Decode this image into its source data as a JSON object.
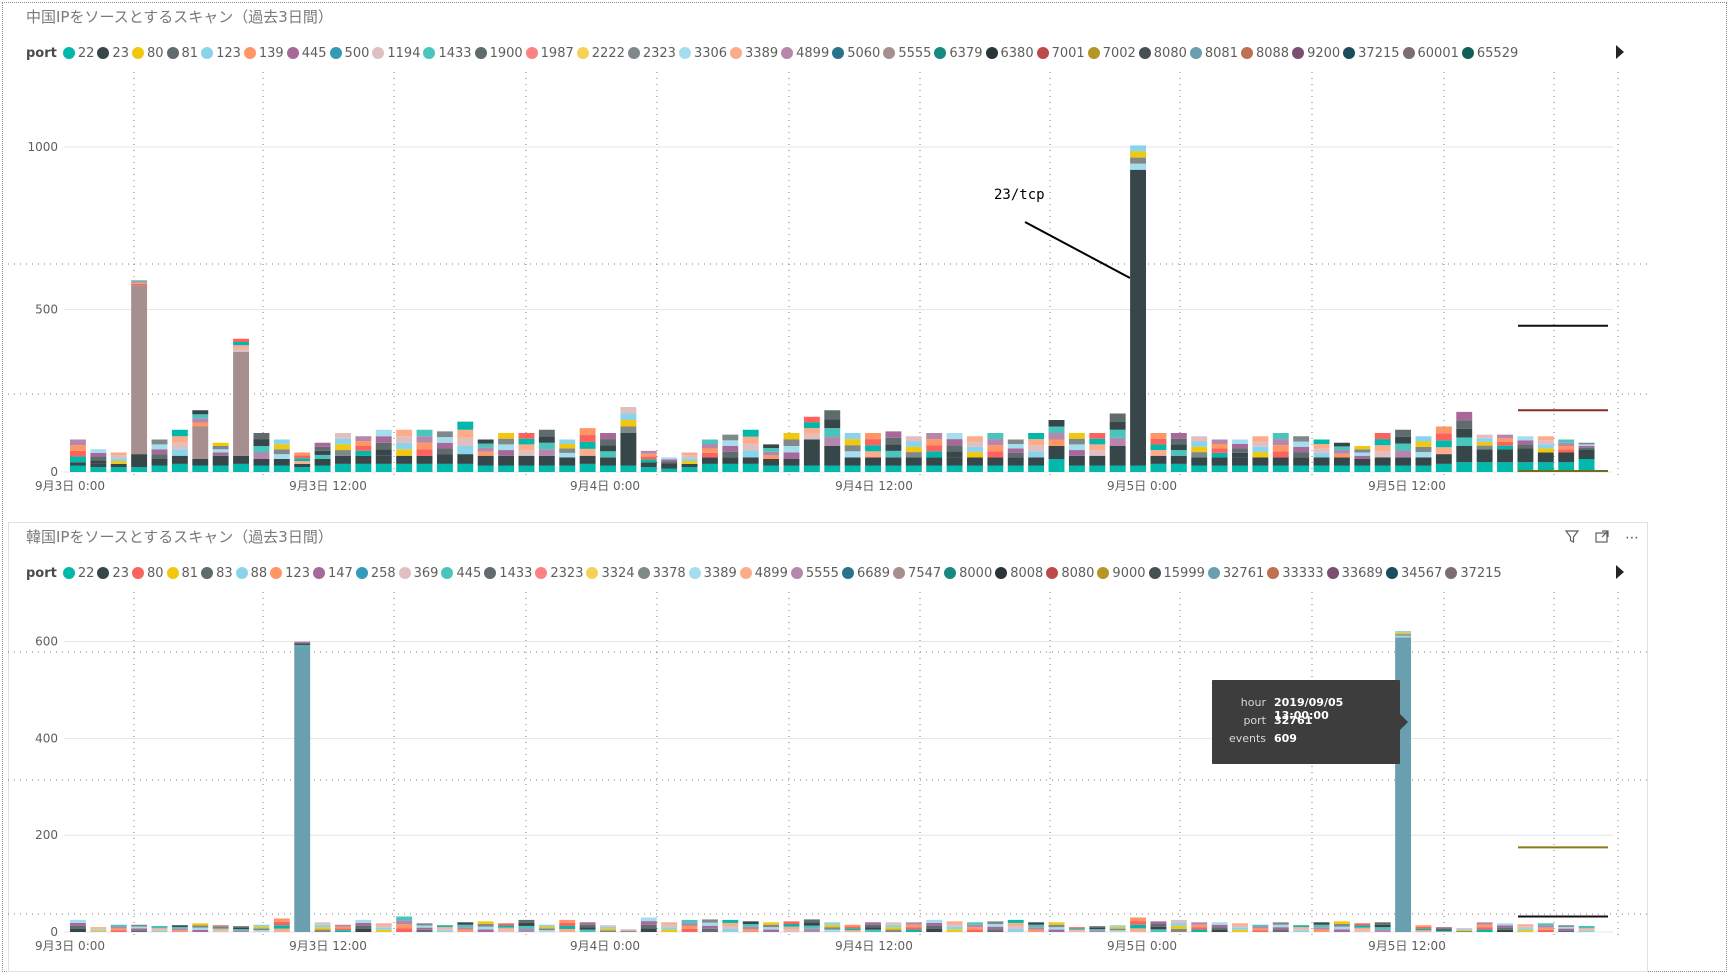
{
  "panels": [
    {
      "title": "中国IPをソースとするスキャン（過去3日間）",
      "legend_label": "port",
      "legend": [
        {
          "label": "22",
          "color": "#01B8AA"
        },
        {
          "label": "23",
          "color": "#374649"
        },
        {
          "label": "80",
          "color": "#F2C80F"
        },
        {
          "label": "81",
          "color": "#5F6B6D"
        },
        {
          "label": "123",
          "color": "#8AD4EB"
        },
        {
          "label": "139",
          "color": "#FE9666"
        },
        {
          "label": "445",
          "color": "#A66999"
        },
        {
          "label": "500",
          "color": "#3599B8"
        },
        {
          "label": "1194",
          "color": "#DFBFBF"
        },
        {
          "label": "1433",
          "color": "#4AC5BB"
        },
        {
          "label": "1900",
          "color": "#5F6B6D"
        },
        {
          "label": "1987",
          "color": "#FB8281"
        },
        {
          "label": "2222",
          "color": "#F4D25A"
        },
        {
          "label": "2323",
          "color": "#7F898A"
        },
        {
          "label": "3306",
          "color": "#A4DDEE"
        },
        {
          "label": "3389",
          "color": "#FDAB89"
        },
        {
          "label": "4899",
          "color": "#B687AC"
        },
        {
          "label": "5060",
          "color": "#28738A"
        },
        {
          "label": "5555",
          "color": "#A78F8F"
        },
        {
          "label": "6379",
          "color": "#168980"
        },
        {
          "label": "6380",
          "color": "#293537"
        },
        {
          "label": "7001",
          "color": "#BB4A4A"
        },
        {
          "label": "7002",
          "color": "#B59525"
        },
        {
          "label": "8080",
          "color": "#475052"
        },
        {
          "label": "8081",
          "color": "#6A9FB0"
        },
        {
          "label": "8088",
          "color": "#BD7150"
        },
        {
          "label": "9200",
          "color": "#7B4F71"
        },
        {
          "label": "37215",
          "color": "#1B4D5C"
        },
        {
          "label": "60001",
          "color": "#7C6E6E"
        },
        {
          "label": "65529",
          "color": "#115E58"
        }
      ],
      "annotation": "23/tcp"
    },
    {
      "title": "韓国IPをソースとするスキャン（過去3日間）",
      "legend_label": "port",
      "legend": [
        {
          "label": "22",
          "color": "#01B8AA"
        },
        {
          "label": "23",
          "color": "#374649"
        },
        {
          "label": "80",
          "color": "#FD625E"
        },
        {
          "label": "81",
          "color": "#F2C80F"
        },
        {
          "label": "83",
          "color": "#5F6B6D"
        },
        {
          "label": "88",
          "color": "#8AD4EB"
        },
        {
          "label": "123",
          "color": "#FE9666"
        },
        {
          "label": "147",
          "color": "#A66999"
        },
        {
          "label": "258",
          "color": "#3599B8"
        },
        {
          "label": "369",
          "color": "#DFBFBF"
        },
        {
          "label": "445",
          "color": "#4AC5BB"
        },
        {
          "label": "1433",
          "color": "#5F6B6D"
        },
        {
          "label": "2323",
          "color": "#FB8281"
        },
        {
          "label": "3324",
          "color": "#F4D25A"
        },
        {
          "label": "3378",
          "color": "#7F898A"
        },
        {
          "label": "3389",
          "color": "#A4DDEE"
        },
        {
          "label": "4899",
          "color": "#FDAB89"
        },
        {
          "label": "5555",
          "color": "#B687AC"
        },
        {
          "label": "6689",
          "color": "#28738A"
        },
        {
          "label": "7547",
          "color": "#A78F8F"
        },
        {
          "label": "8000",
          "color": "#168980"
        },
        {
          "label": "8008",
          "color": "#293537"
        },
        {
          "label": "8080",
          "color": "#BB4A4A"
        },
        {
          "label": "9000",
          "color": "#B59525"
        },
        {
          "label": "15999",
          "color": "#475052"
        },
        {
          "label": "32761",
          "color": "#6A9FB0"
        },
        {
          "label": "33333",
          "color": "#BD7150"
        },
        {
          "label": "33689",
          "color": "#7B4F71"
        },
        {
          "label": "34567",
          "color": "#1B4D5C"
        },
        {
          "label": "37215",
          "color": "#7C6E6E"
        }
      ],
      "tooltip": {
        "hour_label": "hour",
        "hour_value": "2019/09/05 13:00:00",
        "port_label": "port",
        "port_value": "32761",
        "events_label": "events",
        "events_value": "609"
      }
    }
  ],
  "chart_data": [
    {
      "type": "bar",
      "stacked": true,
      "title": "中国IPをソースとするスキャン（過去3日間）",
      "xlabel": "",
      "ylabel": "",
      "ylim": [
        0,
        1000
      ],
      "yticks": [
        0,
        500,
        1000
      ],
      "x_tick_labels": [
        "9月3日 0:00",
        "9月3日 12:00",
        "9月4日 0:00",
        "9月4日 12:00",
        "9月5日 0:00",
        "9月5日 12:00"
      ],
      "hours_per_bar": 1,
      "totals": [
        100,
        70,
        60,
        590,
        100,
        130,
        190,
        90,
        410,
        120,
        100,
        60,
        90,
        120,
        110,
        130,
        130,
        130,
        125,
        155,
        100,
        120,
        120,
        130,
        100,
        135,
        120,
        200,
        65,
        45,
        60,
        100,
        115,
        130,
        85,
        120,
        170,
        190,
        120,
        120,
        125,
        110,
        120,
        120,
        110,
        120,
        100,
        120,
        160,
        120,
        120,
        180,
        1005,
        120,
        120,
        110,
        100,
        100,
        110,
        120,
        110,
        100,
        90,
        80,
        120,
        130,
        110,
        140,
        185,
        115,
        115,
        110,
        110,
        100,
        90
      ],
      "breakdown_23": [
        10,
        10,
        10,
        40,
        20,
        25,
        20,
        30,
        25,
        20,
        20,
        10,
        20,
        25,
        25,
        25,
        25,
        25,
        30,
        30,
        30,
        30,
        30,
        30,
        25,
        25,
        25,
        100,
        15,
        10,
        10,
        20,
        20,
        20,
        20,
        20,
        80,
        60,
        25,
        25,
        25,
        25,
        25,
        25,
        25,
        25,
        25,
        25,
        40,
        30,
        30,
        60,
        910,
        25,
        25,
        25,
        25,
        25,
        25,
        25,
        25,
        25,
        25,
        20,
        25,
        25,
        25,
        30,
        50,
        40,
        40,
        30,
        30,
        30,
        30
      ],
      "breakdown_22": [
        20,
        15,
        15,
        15,
        20,
        25,
        20,
        20,
        25,
        20,
        20,
        15,
        20,
        25,
        25,
        25,
        25,
        25,
        25,
        25,
        20,
        20,
        20,
        20,
        20,
        25,
        20,
        20,
        15,
        10,
        15,
        25,
        25,
        25,
        20,
        20,
        20,
        20,
        20,
        20,
        20,
        20,
        20,
        20,
        20,
        20,
        20,
        20,
        40,
        20,
        20,
        20,
        20,
        25,
        25,
        20,
        20,
        20,
        20,
        20,
        20,
        20,
        20,
        20,
        20,
        20,
        20,
        25,
        30,
        30,
        30,
        30,
        30,
        30,
        40
      ],
      "breakdown_5555": [
        0,
        0,
        0,
        520,
        0,
        0,
        100,
        0,
        320,
        0,
        0,
        0,
        0,
        0,
        0,
        0,
        0,
        0,
        0,
        0,
        0,
        0,
        0,
        0,
        0,
        0,
        0,
        0,
        0,
        0,
        0,
        0,
        0,
        0,
        0,
        0,
        0,
        0,
        0,
        0,
        0,
        0,
        0,
        0,
        0,
        0,
        0,
        0,
        0,
        0,
        0,
        0,
        0,
        0,
        0,
        0,
        0,
        0,
        0,
        0,
        0,
        0,
        0,
        0,
        0,
        0,
        0,
        0,
        0,
        0,
        0,
        0,
        0,
        0,
        0
      ],
      "reference_lines": [
        {
          "value": 450,
          "color": "#111111"
        },
        {
          "value": 190,
          "color": "#8B2A24"
        },
        {
          "value": 3,
          "color": "#6E6E20"
        }
      ]
    },
    {
      "type": "bar",
      "stacked": true,
      "title": "韓国IPをソースとするスキャン（過去3日間）",
      "xlabel": "",
      "ylabel": "",
      "ylim": [
        0,
        620
      ],
      "yticks": [
        0,
        200,
        400,
        600
      ],
      "x_tick_labels": [
        "9月3日 0:00",
        "9月3日 12:00",
        "9月4日 0:00",
        "9月4日 12:00",
        "9月5日 0:00",
        "9月5日 12:00"
      ],
      "hours_per_bar": 1,
      "totals": [
        25,
        10,
        15,
        15,
        12,
        14,
        18,
        14,
        12,
        15,
        28,
        600,
        20,
        15,
        25,
        18,
        32,
        18,
        14,
        20,
        22,
        18,
        25,
        15,
        25,
        20,
        14,
        5,
        30,
        20,
        25,
        26,
        25,
        22,
        20,
        22,
        26,
        20,
        15,
        20,
        20,
        20,
        25,
        22,
        20,
        22,
        25,
        20,
        20,
        10,
        12,
        14,
        30,
        22,
        25,
        20,
        20,
        18,
        15,
        20,
        14,
        20,
        22,
        18,
        20,
        622,
        14,
        10,
        8,
        20,
        18,
        16,
        18,
        14,
        12
      ],
      "breakdown_32761": [
        0,
        0,
        0,
        0,
        0,
        0,
        0,
        0,
        0,
        0,
        0,
        590,
        0,
        0,
        0,
        0,
        0,
        0,
        0,
        0,
        0,
        0,
        0,
        0,
        0,
        0,
        0,
        0,
        0,
        0,
        0,
        0,
        0,
        0,
        0,
        0,
        0,
        0,
        0,
        0,
        0,
        0,
        0,
        0,
        0,
        0,
        0,
        0,
        0,
        0,
        0,
        0,
        0,
        0,
        0,
        0,
        0,
        0,
        0,
        0,
        0,
        0,
        0,
        0,
        0,
        609,
        0,
        0,
        0,
        0,
        0,
        0,
        0,
        0,
        0
      ],
      "reference_lines": [
        {
          "value": 175,
          "color": "#8B7A1A"
        },
        {
          "value": 32,
          "color": "#111111"
        }
      ]
    }
  ]
}
